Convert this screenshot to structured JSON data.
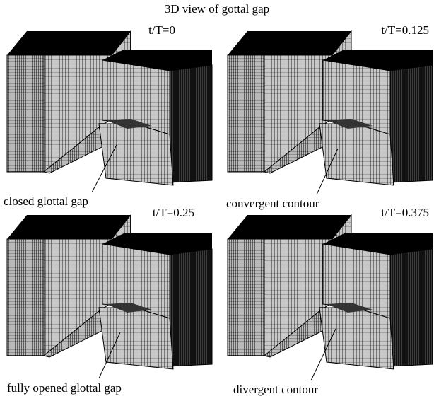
{
  "title": "3D view of gottal gap",
  "panels": [
    {
      "label": "t/T=0",
      "annotation": "closed glottal gap"
    },
    {
      "label": "t/T=0.125",
      "annotation": "convergent contour"
    },
    {
      "label": "t/T=0.25",
      "annotation": "fully opened glottal gap"
    },
    {
      "label": "t/T=0.375",
      "annotation": "divergent contour"
    }
  ]
}
